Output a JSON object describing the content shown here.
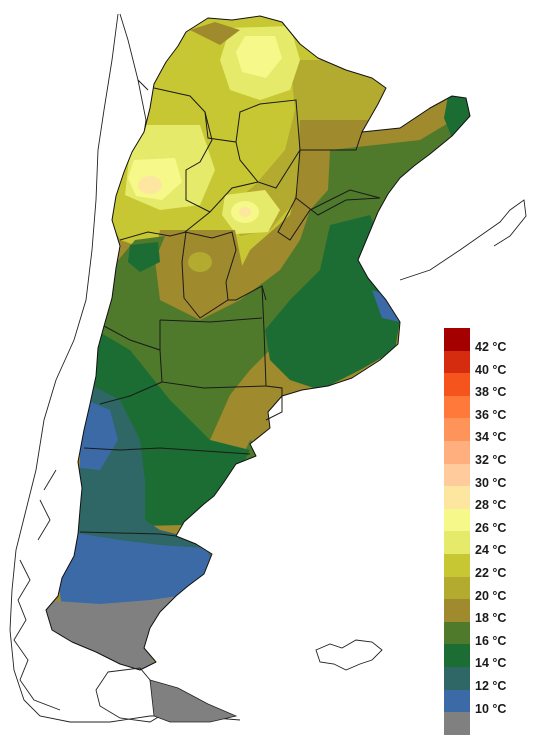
{
  "colors": {
    "c42": "#a50000",
    "c40": "#d52b0f",
    "c38": "#f5551c",
    "c36": "#ff7a3a",
    "c34": "#ff945a",
    "c32": "#ffae7d",
    "c30": "#ffca9c",
    "c28": "#fde6a0",
    "c26": "#f6f98a",
    "c24": "#e6ea6a",
    "c22": "#c7c734",
    "c20": "#b3aa30",
    "c18": "#9f8a2e",
    "c16": "#4f7a2c",
    "c14": "#1b6d33",
    "c12": "#2f6666",
    "c10": "#3c6aa6",
    "c_low": "#808080",
    "outside": "#ffffff",
    "lines": "#1a1a1a"
  },
  "legend": {
    "items": [
      {
        "label": "42 °C",
        "color": "#a50000"
      },
      {
        "label": "40 °C",
        "color": "#d52b0f"
      },
      {
        "label": "38 °C",
        "color": "#f5551c"
      },
      {
        "label": "36 °C",
        "color": "#ff7a3a"
      },
      {
        "label": "34 °C",
        "color": "#ff945a"
      },
      {
        "label": "32 °C",
        "color": "#ffae7d"
      },
      {
        "label": "30 °C",
        "color": "#ffca9c"
      },
      {
        "label": "28 °C",
        "color": "#fde6a0"
      },
      {
        "label": "26 °C",
        "color": "#f6f98a"
      },
      {
        "label": "24 °C",
        "color": "#e6ea6a"
      },
      {
        "label": "22 °C",
        "color": "#c7c734"
      },
      {
        "label": "20 °C",
        "color": "#b3aa30"
      },
      {
        "label": "18 °C",
        "color": "#9f8a2e"
      },
      {
        "label": "16 °C",
        "color": "#4f7a2c"
      },
      {
        "label": "14 °C",
        "color": "#1b6d33"
      },
      {
        "label": "12 °C",
        "color": "#2f6666"
      },
      {
        "label": "10 °C",
        "color": "#3c6aa6"
      },
      {
        "label": "",
        "color": "#808080"
      }
    ]
  }
}
